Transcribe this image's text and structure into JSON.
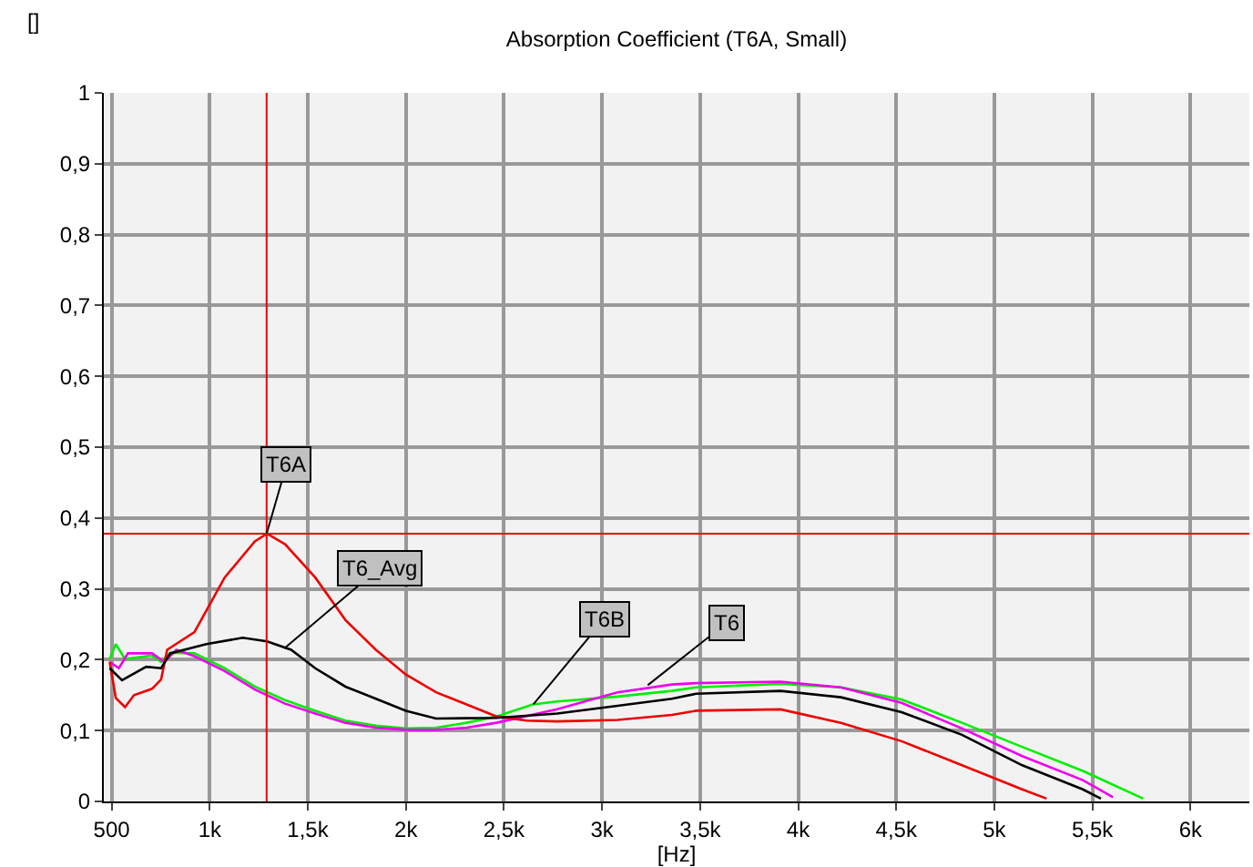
{
  "chart_data": {
    "type": "line",
    "title": "Absorption Coefficient (T6A, Small)",
    "xlabel": "[Hz]",
    "ylabel": "[]",
    "xlim": [
      460,
      6300
    ],
    "ylim": [
      0,
      1
    ],
    "xticks": [
      500,
      {
        "value": 1000,
        "label": "1k"
      },
      {
        "value": 1500,
        "label": "1,5k"
      },
      {
        "value": 2000,
        "label": "2k"
      },
      {
        "value": 2500,
        "label": "2,5k"
      },
      {
        "value": 3000,
        "label": "3k"
      },
      {
        "value": 3500,
        "label": "3,5k"
      },
      {
        "value": 4000,
        "label": "4k"
      },
      {
        "value": 4500,
        "label": "4,5k"
      },
      {
        "value": 5000,
        "label": "5k"
      },
      {
        "value": 5500,
        "label": "5,5k"
      },
      {
        "value": 6000,
        "label": "6k"
      }
    ],
    "yticks": [
      0,
      {
        "value": 0.1,
        "label": "0,1"
      },
      {
        "value": 0.2,
        "label": "0,2"
      },
      {
        "value": 0.3,
        "label": "0,3"
      },
      {
        "value": 0.4,
        "label": "0,4"
      },
      {
        "value": 0.5,
        "label": "0,5"
      },
      {
        "value": 0.6,
        "label": "0,6"
      },
      {
        "value": 0.7,
        "label": "0,7"
      },
      {
        "value": 0.8,
        "label": "0,8"
      },
      {
        "value": 0.9,
        "label": "0,9"
      },
      1
    ],
    "grid": true,
    "marker": "none",
    "line_style": "solid",
    "series": [
      {
        "color": "#00ee00",
        "x": [
          490,
          521,
          568,
          706,
          752,
          799,
          922,
          1076,
          1230,
          1384,
          1538,
          1692,
          1847,
          2000,
          2154,
          2309,
          2462,
          2647,
          2771,
          3079,
          3356,
          3479,
          3910,
          4218,
          4527,
          4835,
          5142,
          5451,
          5759
        ],
        "values": [
          0.201,
          0.222,
          0.201,
          0.206,
          0.197,
          0.21,
          0.209,
          0.188,
          0.162,
          0.143,
          0.128,
          0.114,
          0.107,
          0.103,
          0.104,
          0.111,
          0.12,
          0.137,
          0.141,
          0.148,
          0.156,
          0.161,
          0.166,
          0.161,
          0.144,
          0.111,
          0.077,
          0.043,
          0.004
        ]
      },
      {
        "color": "#ee00ee",
        "x": [
          490,
          537,
          583,
          706,
          768,
          830,
          922,
          1076,
          1230,
          1384,
          1538,
          1692,
          1847,
          2000,
          2154,
          2309,
          2462,
          2771,
          3079,
          3356,
          3479,
          3910,
          4218,
          4527,
          4835,
          5142,
          5451,
          5605
        ],
        "values": [
          0.197,
          0.188,
          0.209,
          0.209,
          0.197,
          0.214,
          0.205,
          0.184,
          0.158,
          0.138,
          0.124,
          0.111,
          0.104,
          0.101,
          0.101,
          0.104,
          0.111,
          0.13,
          0.154,
          0.165,
          0.167,
          0.169,
          0.161,
          0.139,
          0.103,
          0.064,
          0.03,
          0.006
        ]
      },
      {
        "color": "#ee0000",
        "x": [
          490,
          521,
          568,
          614,
          706,
          752,
          783,
          922,
          1076,
          1230,
          1292,
          1384,
          1538,
          1692,
          1847,
          2000,
          2154,
          2309,
          2462,
          2616,
          2771,
          3079,
          3356,
          3479,
          3910,
          4218,
          4527,
          4835,
          5142,
          5266
        ],
        "values": [
          0.197,
          0.146,
          0.133,
          0.15,
          0.159,
          0.172,
          0.214,
          0.239,
          0.316,
          0.367,
          0.378,
          0.363,
          0.316,
          0.256,
          0.214,
          0.179,
          0.154,
          0.137,
          0.12,
          0.114,
          0.113,
          0.115,
          0.122,
          0.128,
          0.13,
          0.111,
          0.085,
          0.051,
          0.017,
          0.004
        ]
      },
      {
        "color": "#000000",
        "x": [
          490,
          553,
          676,
          752,
          799,
          983,
          1168,
          1292,
          1415,
          1538,
          1692,
          1847,
          2000,
          2154,
          2462,
          2771,
          3079,
          3356,
          3479,
          3910,
          4218,
          4527,
          4835,
          5142,
          5451,
          5543
        ],
        "values": [
          0.188,
          0.171,
          0.19,
          0.188,
          0.209,
          0.222,
          0.231,
          0.226,
          0.214,
          0.188,
          0.162,
          0.145,
          0.128,
          0.117,
          0.118,
          0.124,
          0.135,
          0.145,
          0.152,
          0.156,
          0.147,
          0.126,
          0.094,
          0.051,
          0.017,
          0.004
        ]
      }
    ],
    "ref_lines": [
      {
        "axis": "y",
        "value": 0.378,
        "color": "#ee0000"
      },
      {
        "axis": "x",
        "value": 1290,
        "color": "#ee0000"
      }
    ],
    "annotations": [
      {
        "text": "T6A",
        "x": 1290,
        "y": 0.378
      },
      {
        "text": "T6_Avg",
        "x": 1380,
        "y": 0.216
      },
      {
        "text": "T6B",
        "x": 2650,
        "y": 0.137
      },
      {
        "text": "T6",
        "x": 3233,
        "y": 0.164
      }
    ]
  }
}
